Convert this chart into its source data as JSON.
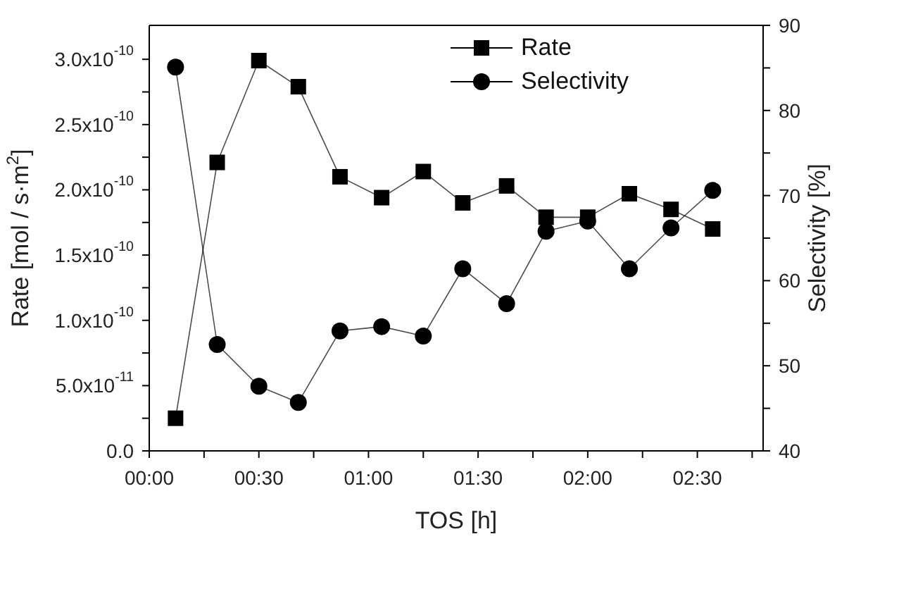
{
  "chart_data": {
    "type": "line",
    "xlabel": "TOS [h]",
    "ylabel": "Rate [mol / s·m$^{2}$]",
    "y2label": "Selectivity [%]",
    "x": [
      0.12,
      0.31,
      0.5,
      0.68,
      0.87,
      1.06,
      1.25,
      1.43,
      1.63,
      1.81,
      2.0,
      2.19,
      2.38,
      2.57
    ],
    "series": [
      {
        "name": "Rate",
        "color": "#000000",
        "marker": "square",
        "values": [
          2.5e-11,
          2.21e-10,
          2.99e-10,
          2.79e-10,
          2.1e-10,
          1.94e-10,
          2.14e-10,
          1.9e-10,
          2.03e-10,
          1.79e-10,
          1.79e-10,
          1.97e-10,
          1.85e-10,
          1.7e-10
        ]
      },
      {
        "name": "Selectivity",
        "color": "#000000",
        "marker": "circle",
        "axis": "y2",
        "values": [
          85.1,
          52.5,
          47.6,
          45.7,
          54.1,
          54.6,
          53.5,
          61.4,
          57.3,
          65.8,
          67.0,
          61.4,
          66.2,
          70.6
        ]
      }
    ],
    "xlim": [
      0,
      2.8
    ],
    "xticks": [
      {
        "value": 0,
        "label": "00:00"
      },
      {
        "value": 0.25,
        "label": null
      },
      {
        "value": 0.5,
        "label": "00:30"
      },
      {
        "value": 0.75,
        "label": null
      },
      {
        "value": 1,
        "label": "01:00"
      },
      {
        "value": 1.25,
        "label": null
      },
      {
        "value": 1.5,
        "label": "01:30"
      },
      {
        "value": 1.75,
        "label": null
      },
      {
        "value": 2,
        "label": "02:00"
      },
      {
        "value": 2.25,
        "label": null
      },
      {
        "value": 2.5,
        "label": "02:30"
      },
      {
        "value": 2.75,
        "label": null
      }
    ],
    "ylim": [
      0,
      3.26e-10
    ],
    "yticks": [
      {
        "value": 0,
        "label": "0.0"
      },
      {
        "value": 2.5e-11,
        "label": null
      },
      {
        "value": 5e-11,
        "label": "5.0x10$^{-11}$"
      },
      {
        "value": 7.5e-11,
        "label": null
      },
      {
        "value": 1e-10,
        "label": "1.0x10$^{-10}$"
      },
      {
        "value": 1.25e-10,
        "label": null
      },
      {
        "value": 1.5e-10,
        "label": "1.5x10$^{-10}$"
      },
      {
        "value": 1.75e-10,
        "label": null
      },
      {
        "value": 2e-10,
        "label": "2.0x10$^{-10}$"
      },
      {
        "value": 2.25e-10,
        "label": null
      },
      {
        "value": 2.5e-10,
        "label": "2.5x10$^{-10}$"
      },
      {
        "value": 2.75e-10,
        "label": null
      },
      {
        "value": 3e-10,
        "label": "3.0x10$^{-10}$"
      }
    ],
    "y2lim": [
      40,
      90
    ],
    "y2ticks": [
      40,
      {
        "value": 45,
        "label": null
      },
      50,
      {
        "value": 55,
        "label": null
      },
      60,
      {
        "value": 65,
        "label": null
      },
      70,
      {
        "value": 75,
        "label": null
      },
      80,
      {
        "value": 85,
        "label": null
      },
      90
    ],
    "legend": "top",
    "grid": false,
    "line_style": "solid"
  }
}
